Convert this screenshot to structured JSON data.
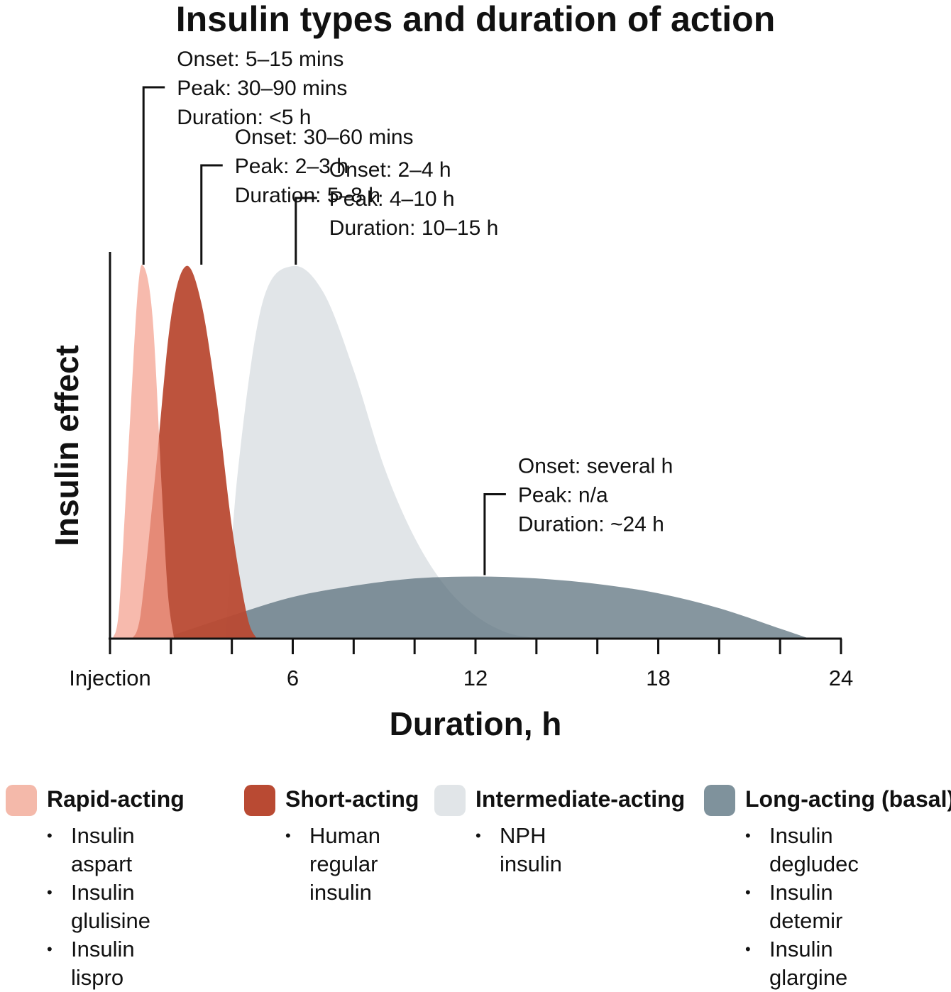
{
  "chart_data": {
    "type": "area",
    "title": "Insulin types and duration of action",
    "xlabel": "Duration, h",
    "ylabel": "Insulin effect",
    "xlim": [
      0,
      24
    ],
    "x_ticks": [
      {
        "value": 0,
        "label": "Injection"
      },
      {
        "value": 6,
        "label": "6"
      },
      {
        "value": 12,
        "label": "12"
      },
      {
        "value": 18,
        "label": "18"
      },
      {
        "value": 24,
        "label": "24"
      }
    ],
    "x_minor_ticks": [
      2,
      4,
      8,
      10,
      14,
      16,
      20,
      22
    ],
    "ylim": [
      0,
      1
    ],
    "grid": false,
    "legend_position": "bottom",
    "series": [
      {
        "name": "Intermediate-acting",
        "color": "#e1e5e8",
        "opacity": 1,
        "x": [
          3.8,
          4.2,
          5.0,
          6.0,
          7.0,
          8.0,
          9.0,
          10.0,
          11.0,
          12.0,
          13.0,
          13.9
        ],
        "y": [
          0,
          0.45,
          0.9,
          1.0,
          0.93,
          0.72,
          0.46,
          0.27,
          0.14,
          0.06,
          0.015,
          0
        ],
        "annotation": {
          "onset": "Onset: 2–4 h",
          "peak": "Peak: 4–10 h",
          "duration": "Duration: 10–15 h"
        },
        "annotation_x": 6.1
      },
      {
        "name": "Long-acting (basal)",
        "color": "#576e7a",
        "opacity": 0.72,
        "x": [
          1.8,
          4.0,
          6.0,
          8.0,
          10.0,
          12.0,
          14.0,
          16.0,
          18.0,
          20.0,
          22.0,
          22.9
        ],
        "y": [
          0,
          0.06,
          0.11,
          0.14,
          0.16,
          0.165,
          0.16,
          0.145,
          0.12,
          0.08,
          0.025,
          0
        ],
        "annotation": {
          "onset": "Onset: several h",
          "peak": "Peak: n/a",
          "duration": "Duration: ~24 h"
        },
        "annotation_x": 12.3
      },
      {
        "name": "Short-acting",
        "color": "#b94a33",
        "opacity": 0.95,
        "x": [
          0.75,
          1.0,
          1.5,
          2.0,
          2.5,
          3.0,
          3.5,
          4.0,
          4.5,
          4.8
        ],
        "y": [
          0,
          0.06,
          0.45,
          0.86,
          1.0,
          0.9,
          0.64,
          0.3,
          0.06,
          0
        ],
        "annotation": {
          "onset": "Onset: 30–60 mins",
          "peak": "Peak: 2–3 h",
          "duration": "Duration: 5–8 h"
        },
        "annotation_x": 3.0
      },
      {
        "name": "Rapid-acting",
        "color": "#f4a08e",
        "opacity": 0.72,
        "x": [
          0.1,
          0.3,
          0.6,
          0.9,
          1.1,
          1.4,
          1.7,
          1.9,
          2.1
        ],
        "y": [
          0,
          0.08,
          0.5,
          0.92,
          1.0,
          0.86,
          0.4,
          0.12,
          0
        ],
        "annotation": {
          "onset": "Onset: 5–15 mins",
          "peak": "Peak: 30–90 mins",
          "duration": "Duration: <5 h"
        },
        "annotation_x": 1.1
      }
    ]
  },
  "legend": [
    {
      "label": "Rapid-acting",
      "color": "#f4b9aa",
      "items": [
        "Insulin aspart",
        "Insulin glulisine",
        "Insulin lispro"
      ]
    },
    {
      "label": "Short-acting",
      "color": "#b94a33",
      "items": [
        "Human regular insulin"
      ]
    },
    {
      "label": "Intermediate-acting",
      "color": "#e1e5e8",
      "items": [
        "NPH insulin"
      ]
    },
    {
      "label": "Long-acting (basal)",
      "color": "#7f929c",
      "items": [
        "Insulin degludec",
        "Insulin detemir",
        "Insulin glargine"
      ]
    }
  ]
}
